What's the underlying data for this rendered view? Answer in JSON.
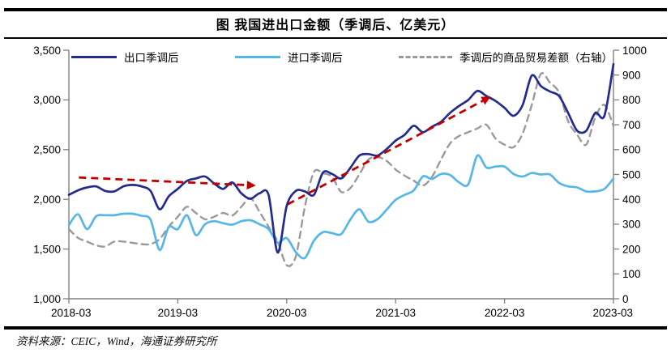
{
  "title": "图 我国进出口金额（季调后、亿美元）",
  "source": "资料来源：CEIC，Wind，海通证券研究所",
  "colors": {
    "export": "#232B8E",
    "import": "#57B6E8",
    "balance": "#9A9A9A",
    "arrow": "#C00000",
    "axis": "#808080",
    "text": "#000000"
  },
  "chart_data": {
    "type": "line",
    "title": "图 我国进出口金额（季调后、亿美元）",
    "x_axis": {
      "start": "2018-03",
      "end": "2023-03",
      "interval": "monthly",
      "tick_labels": [
        "2018-03",
        "2019-03",
        "2020-03",
        "2021-03",
        "2022-03",
        "2023-03"
      ]
    },
    "y_axis_left": {
      "min": 1000,
      "max": 3500,
      "step": 500,
      "tick_labels": [
        "3,500",
        "3,000",
        "2,500",
        "2,000",
        "1,500",
        "1,000"
      ]
    },
    "y_axis_right": {
      "min": 0,
      "max": 1000,
      "step": 100,
      "tick_labels": [
        "1000",
        "900",
        "800",
        "700",
        "600",
        "500",
        "400",
        "300",
        "200",
        "100",
        "0"
      ]
    },
    "series": [
      {
        "name": "出口季调后",
        "axis": "left",
        "style": "solid",
        "color": "#232B8E",
        "values": [
          2045,
          2090,
          2120,
          2130,
          2085,
          2080,
          2130,
          2145,
          2130,
          2085,
          1900,
          2030,
          2105,
          2185,
          2210,
          2230,
          2160,
          2105,
          2170,
          2060,
          2005,
          2060,
          2045,
          1465,
          1935,
          2085,
          2080,
          2045,
          2270,
          2255,
          2210,
          2315,
          2440,
          2455,
          2440,
          2505,
          2590,
          2650,
          2740,
          2675,
          2730,
          2780,
          2870,
          2940,
          3000,
          3090,
          3040,
          2990,
          2920,
          2840,
          2950,
          3245,
          3140,
          3085,
          3040,
          2870,
          2690,
          2690,
          2870,
          2840,
          3360
        ]
      },
      {
        "name": "进口季调后",
        "axis": "left",
        "style": "solid",
        "color": "#57B6E8",
        "values": [
          1740,
          1850,
          1700,
          1830,
          1840,
          1840,
          1855,
          1855,
          1835,
          1795,
          1490,
          1720,
          1700,
          1840,
          1640,
          1750,
          1780,
          1760,
          1745,
          1780,
          1790,
          1750,
          1700,
          1565,
          1610,
          1470,
          1410,
          1585,
          1670,
          1660,
          1650,
          1795,
          1900,
          1775,
          1800,
          1895,
          1995,
          2045,
          2090,
          2230,
          2205,
          2255,
          2245,
          2170,
          2150,
          2440,
          2320,
          2330,
          2330,
          2255,
          2230,
          2265,
          2250,
          2250,
          2165,
          2130,
          2120,
          2080,
          2080,
          2105,
          2210
        ]
      },
      {
        "name": "季调后的商品贸易差额（右轴）",
        "axis": "right",
        "style": "dashed",
        "color": "#9A9A9A",
        "values": [
          280,
          245,
          230,
          215,
          210,
          230,
          230,
          225,
          220,
          220,
          240,
          290,
          330,
          370,
          345,
          320,
          330,
          345,
          335,
          370,
          405,
          350,
          290,
          230,
          135,
          170,
          370,
          510,
          505,
          490,
          430,
          445,
          500,
          560,
          570,
          555,
          520,
          495,
          475,
          455,
          490,
          560,
          625,
          655,
          670,
          685,
          700,
          645,
          620,
          610,
          665,
          780,
          905,
          870,
          830,
          715,
          660,
          620,
          730,
          780,
          695
        ]
      }
    ],
    "annotations": [
      {
        "type": "dashed-arrow",
        "color": "#C00000",
        "axis": "left",
        "from": {
          "month": 1.1,
          "value": 2220
        },
        "to": {
          "month": 20.4,
          "value": 2140
        }
      },
      {
        "type": "dashed-arrow",
        "color": "#C00000",
        "axis": "left",
        "from": {
          "month": 24.1,
          "value": 1950
        },
        "to": {
          "month": 46.3,
          "value": 3025
        }
      }
    ],
    "legend_position": "top"
  }
}
